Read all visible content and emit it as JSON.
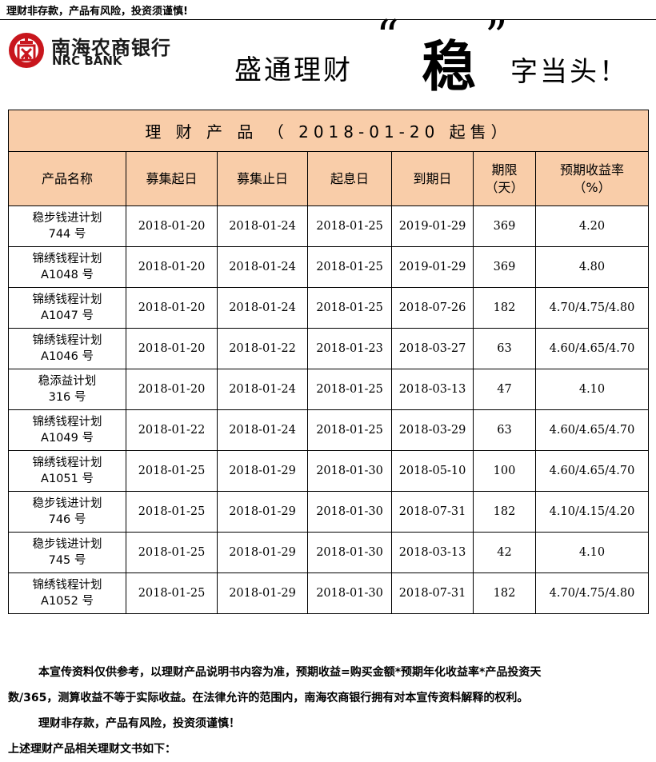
{
  "top_warning": "理财非存款，产品有风险，投资须谨慎!",
  "logo": {
    "cn": "南海农商银行",
    "en": "NRC BANK",
    "brand_color": "#c8161d"
  },
  "slogan": {
    "part1": "盛通理财",
    "quote_left": "“",
    "key": "稳",
    "quote_right": "”",
    "part2": "字当头！"
  },
  "table": {
    "title": "理 财 产 品 （ 2018-01-20 起售）",
    "header_color": "#f9cda9",
    "headers": [
      {
        "line1": "产品名称",
        "line2": ""
      },
      {
        "line1": "募集起日",
        "line2": ""
      },
      {
        "line1": "募集止日",
        "line2": ""
      },
      {
        "line1": "起息日",
        "line2": ""
      },
      {
        "line1": "到期日",
        "line2": ""
      },
      {
        "line1": "期限",
        "line2": "（天）"
      },
      {
        "line1": "预期收益率",
        "line2": "（%）"
      }
    ],
    "rows": [
      {
        "name1": "稳步钱进计划",
        "name2": "744 号",
        "start": "2018-01-20",
        "end": "2018-01-24",
        "value_date": "2018-01-25",
        "maturity": "2019-01-29",
        "days": "369",
        "rate": "4.20"
      },
      {
        "name1": "锦绣钱程计划",
        "name2": "A1048 号",
        "start": "2018-01-20",
        "end": "2018-01-24",
        "value_date": "2018-01-25",
        "maturity": "2019-01-29",
        "days": "369",
        "rate": "4.80"
      },
      {
        "name1": "锦绣钱程计划",
        "name2": "A1047 号",
        "start": "2018-01-20",
        "end": "2018-01-24",
        "value_date": "2018-01-25",
        "maturity": "2018-07-26",
        "days": "182",
        "rate": "4.70/4.75/4.80"
      },
      {
        "name1": "锦绣钱程计划",
        "name2": "A1046 号",
        "start": "2018-01-20",
        "end": "2018-01-22",
        "value_date": "2018-01-23",
        "maturity": "2018-03-27",
        "days": "63",
        "rate": "4.60/4.65/4.70"
      },
      {
        "name1": "稳添益计划",
        "name2": "316 号",
        "start": "2018-01-20",
        "end": "2018-01-24",
        "value_date": "2018-01-25",
        "maturity": "2018-03-13",
        "days": "47",
        "rate": "4.10"
      },
      {
        "name1": "锦绣钱程计划",
        "name2": "A1049 号",
        "start": "2018-01-22",
        "end": "2018-01-24",
        "value_date": "2018-01-25",
        "maturity": "2018-03-29",
        "days": "63",
        "rate": "4.60/4.65/4.70"
      },
      {
        "name1": "锦绣钱程计划",
        "name2": "A1051 号",
        "start": "2018-01-25",
        "end": "2018-01-29",
        "value_date": "2018-01-30",
        "maturity": "2018-05-10",
        "days": "100",
        "rate": "4.60/4.65/4.70"
      },
      {
        "name1": "稳步钱进计划",
        "name2": "746 号",
        "start": "2018-01-25",
        "end": "2018-01-29",
        "value_date": "2018-01-30",
        "maturity": "2018-07-31",
        "days": "182",
        "rate": "4.10/4.15/4.20"
      },
      {
        "name1": "稳步钱进计划",
        "name2": "745 号",
        "start": "2018-01-25",
        "end": "2018-01-29",
        "value_date": "2018-01-30",
        "maturity": "2018-03-13",
        "days": "42",
        "rate": "4.10"
      },
      {
        "name1": "锦绣钱程计划",
        "name2": "A1052 号",
        "start": "2018-01-25",
        "end": "2018-01-29",
        "value_date": "2018-01-30",
        "maturity": "2018-07-31",
        "days": "182",
        "rate": "4.70/4.75/4.80"
      }
    ]
  },
  "footer": {
    "line1": "本宣传资料仅供参考，以理财产品说明书内容为准，预期收益=购买金额*预期年化收益率*产品投资天",
    "line2": "数/365，测算收益不等于实际收益。在法律允许的范围内，南海农商银行拥有对本宣传资料解释的权利。",
    "line3": "理财非存款，产品有风险，投资须谨慎！",
    "line4": "上述理财产品相关理财文书如下："
  }
}
